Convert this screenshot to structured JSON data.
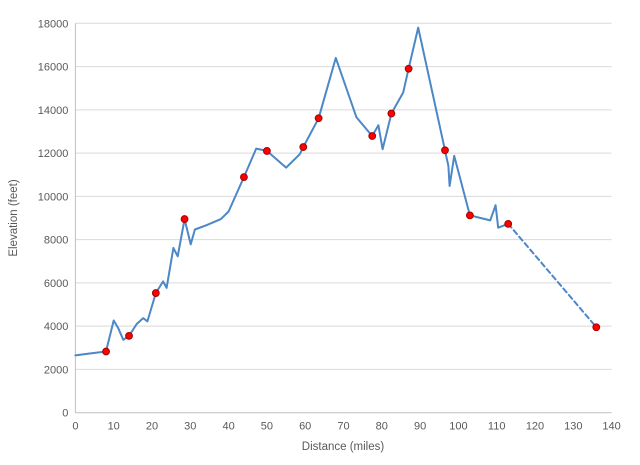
{
  "chart_data": {
    "type": "line",
    "title": "",
    "xlabel": "Distance (miles)",
    "ylabel": "Elevation (feet)",
    "xlim": [
      0,
      140
    ],
    "ylim": [
      0,
      18000
    ],
    "x_ticks": [
      0,
      10,
      20,
      30,
      40,
      50,
      60,
      70,
      80,
      90,
      100,
      110,
      120,
      130,
      140
    ],
    "y_ticks": [
      0,
      2000,
      4000,
      6000,
      8000,
      10000,
      12000,
      14000,
      16000,
      18000
    ],
    "grid": "horizontal",
    "legend": "none",
    "colors": {
      "line": "#4C87C8",
      "marker_fill": "#FF0000",
      "marker_edge": "#A40000",
      "gridline": "#D9D9D9",
      "axis_line": "#C0C0C0",
      "label_text": "#595959"
    },
    "series": [
      {
        "name": "elevation-profile-solid",
        "style": "solid",
        "points": [
          [
            0,
            2650
          ],
          [
            4,
            2740
          ],
          [
            8,
            2830
          ],
          [
            10,
            4260
          ],
          [
            11.2,
            3900
          ],
          [
            12.5,
            3370
          ],
          [
            14,
            3550
          ],
          [
            16,
            4100
          ],
          [
            17.7,
            4375
          ],
          [
            18.8,
            4220
          ],
          [
            21,
            5530
          ],
          [
            22.9,
            6070
          ],
          [
            23.8,
            5770
          ],
          [
            25.6,
            7620
          ],
          [
            26.7,
            7230
          ],
          [
            28.5,
            8950
          ],
          [
            30.1,
            7780
          ],
          [
            31.2,
            8470
          ],
          [
            34,
            8650
          ],
          [
            38,
            8950
          ],
          [
            40,
            9300
          ],
          [
            44,
            10890
          ],
          [
            47.2,
            12210
          ],
          [
            50,
            12100
          ],
          [
            55,
            11330
          ],
          [
            58.6,
            11950
          ],
          [
            59.5,
            12280
          ],
          [
            63.5,
            13610
          ],
          [
            68,
            16400
          ],
          [
            73.4,
            13650
          ],
          [
            77.5,
            12790
          ],
          [
            79.1,
            13290
          ],
          [
            80.2,
            12180
          ],
          [
            82.5,
            13830
          ],
          [
            85.6,
            14800
          ],
          [
            87,
            15900
          ],
          [
            89.5,
            17800
          ],
          [
            96.5,
            12130
          ],
          [
            97.4,
            11400
          ],
          [
            97.7,
            10480
          ],
          [
            98.9,
            11870
          ],
          [
            103,
            9120
          ],
          [
            108.3,
            8890
          ],
          [
            109.7,
            9590
          ],
          [
            110.4,
            8550
          ],
          [
            113,
            8730
          ]
        ]
      },
      {
        "name": "elevation-profile-dashed-projection",
        "style": "dashed",
        "points": [
          [
            113,
            8730
          ],
          [
            136,
            3950
          ]
        ]
      },
      {
        "name": "waypoint-markers",
        "style": "markers",
        "points": [
          [
            8,
            2830
          ],
          [
            14,
            3550
          ],
          [
            21,
            5530
          ],
          [
            28.5,
            8950
          ],
          [
            44,
            10890
          ],
          [
            50,
            12100
          ],
          [
            59.5,
            12280
          ],
          [
            63.5,
            13610
          ],
          [
            77.5,
            12790
          ],
          [
            82.5,
            13830
          ],
          [
            87,
            15900
          ],
          [
            96.5,
            12130
          ],
          [
            103,
            9120
          ],
          [
            113,
            8730
          ],
          [
            136,
            3950
          ]
        ]
      }
    ]
  }
}
